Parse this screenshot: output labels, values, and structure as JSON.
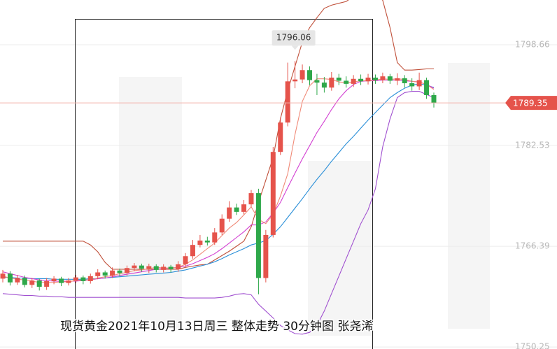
{
  "chart_data": {
    "type": "candlestick",
    "title": "现货黄金2021年10月13日周三 整体走势  30分钟图  张尧浠",
    "ylim": [
      1749.93,
      1805.83
    ],
    "yticks": [
      1750.25,
      1766.39,
      1782.53,
      1798.66
    ],
    "grid": true,
    "up_color": "#e5534b",
    "down_color": "#2ea84a",
    "open": [
      1761.2,
      1762.0,
      1760.6,
      1761.3,
      1760.2,
      1760.9,
      1759.9,
      1760.8,
      1761.2,
      1760.5,
      1760.9,
      1761.4,
      1760.8,
      1761.6,
      1762.2,
      1761.7,
      1762.5,
      1762.1,
      1762.9,
      1763.3,
      1762.8,
      1763.2,
      1762.6,
      1763.1,
      1762.7,
      1763.5,
      1764.8,
      1766.6,
      1767.3,
      1767.0,
      1768.6,
      1770.8,
      1772.6,
      1771.9,
      1773.1,
      1774.9,
      1761.3,
      1768.2,
      1781.5,
      1786.2,
      1792.8,
      1793.1,
      1794.6,
      1793.0,
      1792.6,
      1791.8,
      1793.4,
      1792.9,
      1792.4,
      1793.2,
      1792.8,
      1793.4,
      1793.0,
      1793.6,
      1792.9,
      1793.3,
      1792.5,
      1792.0,
      1793.0,
      1790.6
    ],
    "high": [
      1762.6,
      1762.4,
      1761.8,
      1761.7,
      1761.3,
      1761.2,
      1761.3,
      1761.6,
      1761.5,
      1761.3,
      1761.8,
      1761.7,
      1762.0,
      1762.7,
      1762.5,
      1763.0,
      1762.8,
      1763.3,
      1763.7,
      1763.6,
      1763.6,
      1763.5,
      1763.5,
      1763.4,
      1764.0,
      1765.3,
      1767.4,
      1768.2,
      1767.9,
      1769.3,
      1771.5,
      1773.6,
      1773.2,
      1773.8,
      1775.4,
      1775.6,
      1769.0,
      1782.3,
      1787.0,
      1795.8,
      1796.06,
      1795.5,
      1795.2,
      1794.0,
      1793.5,
      1794.3,
      1794.0,
      1793.6,
      1793.8,
      1793.9,
      1794.0,
      1793.9,
      1794.2,
      1794.0,
      1794.1,
      1793.8,
      1793.3,
      1794.2,
      1793.4,
      1791.0
    ],
    "low": [
      1760.6,
      1760.1,
      1760.2,
      1759.8,
      1759.7,
      1759.3,
      1759.4,
      1760.3,
      1760.0,
      1760.1,
      1760.5,
      1760.3,
      1760.4,
      1761.1,
      1761.2,
      1761.3,
      1761.6,
      1761.7,
      1762.4,
      1762.3,
      1762.1,
      1762.2,
      1762.2,
      1762.2,
      1762.3,
      1763.1,
      1764.4,
      1766.2,
      1766.5,
      1766.6,
      1768.2,
      1770.3,
      1771.4,
      1771.5,
      1772.7,
      1758.7,
      1760.6,
      1767.8,
      1781.0,
      1785.6,
      1791.7,
      1792.5,
      1792.2,
      1790.6,
      1791.0,
      1791.3,
      1792.2,
      1791.8,
      1791.9,
      1792.2,
      1792.3,
      1792.4,
      1792.5,
      1792.4,
      1792.2,
      1791.8,
      1791.3,
      1791.4,
      1790.0,
      1788.6
    ],
    "close": [
      1762.0,
      1760.6,
      1761.3,
      1760.2,
      1760.9,
      1759.9,
      1760.8,
      1761.2,
      1760.5,
      1760.9,
      1761.4,
      1760.8,
      1761.6,
      1762.2,
      1761.7,
      1762.5,
      1762.1,
      1762.9,
      1763.3,
      1762.8,
      1763.2,
      1762.6,
      1763.1,
      1762.7,
      1763.5,
      1764.8,
      1766.6,
      1767.3,
      1767.0,
      1768.6,
      1770.8,
      1772.6,
      1771.9,
      1773.1,
      1774.9,
      1761.3,
      1768.2,
      1781.5,
      1786.2,
      1792.8,
      1793.1,
      1794.6,
      1793.0,
      1792.6,
      1791.8,
      1793.4,
      1792.9,
      1792.4,
      1793.2,
      1792.8,
      1793.4,
      1793.0,
      1793.6,
      1792.9,
      1793.3,
      1792.5,
      1792.0,
      1793.0,
      1790.6,
      1789.35
    ],
    "lines": [
      {
        "color": "#c0503a",
        "values": [
          1767.2,
          1767.2,
          1767.2,
          1767.2,
          1767.2,
          1767.2,
          1767.2,
          1767.2,
          1767.2,
          1767.2,
          1767.2,
          1767.2,
          1766.6,
          1765.5,
          1763.8,
          1762.7,
          1762.7,
          1762.7,
          1762.7,
          1762.7,
          1762.7,
          1762.7,
          1762.7,
          1762.7,
          1762.7,
          1763.0,
          1763.2,
          1763.4,
          1763.5,
          1764.2,
          1764.9,
          1765.6,
          1766.4,
          1767.2,
          1769.5,
          1773.4,
          1777.0,
          1780.6,
          1786.8,
          1791.3,
          1795.2,
          1799.1,
          1801.4,
          1803.0,
          1804.5,
          1805.0,
          1805.3,
          1805.6,
          1806.4,
          1806.7,
          1807.0,
          1806.8,
          1805.8,
          1801.4,
          1795.8,
          1794.6,
          1794.6,
          1794.7,
          1794.8,
          1794.8
        ]
      },
      {
        "color": "#a050d0",
        "values": [
          1758.8,
          1758.7,
          1758.6,
          1758.5,
          1758.5,
          1758.4,
          1758.4,
          1758.3,
          1758.3,
          1758.2,
          1758.2,
          1758.2,
          1758.2,
          1758.2,
          1758.2,
          1758.2,
          1758.2,
          1758.2,
          1758.2,
          1758.2,
          1758.2,
          1758.2,
          1758.2,
          1758.2,
          1758.2,
          1758.1,
          1758.1,
          1758.1,
          1758.1,
          1758.1,
          1758.2,
          1758.4,
          1758.7,
          1758.8,
          1758.6,
          1757.1,
          1756.0,
          1754.9,
          1753.7,
          1753.0,
          1752.4,
          1752.3,
          1752.6,
          1753.7,
          1756.0,
          1758.8,
          1761.6,
          1764.4,
          1767.2,
          1770.0,
          1772.2,
          1775.6,
          1782.3,
          1786.8,
          1790.2,
          1791.0,
          1791.2,
          1791.2,
          1790.7,
          1790.2
        ]
      },
      {
        "color": "#2a8fd8",
        "values": [
          1761.4,
          1761.4,
          1761.3,
          1761.3,
          1761.2,
          1761.2,
          1761.2,
          1761.1,
          1761.1,
          1761.1,
          1761.1,
          1761.1,
          1761.2,
          1761.2,
          1761.3,
          1761.4,
          1761.5,
          1761.6,
          1761.7,
          1761.8,
          1761.9,
          1762.0,
          1762.1,
          1762.2,
          1762.4,
          1762.6,
          1762.9,
          1763.2,
          1763.5,
          1763.9,
          1764.4,
          1765.0,
          1765.5,
          1766.0,
          1766.6,
          1766.9,
          1767.3,
          1768.3,
          1769.5,
          1771.0,
          1772.5,
          1774.0,
          1775.6,
          1777.1,
          1778.5,
          1780.0,
          1781.4,
          1782.8,
          1784.0,
          1785.3,
          1786.6,
          1787.8,
          1789.0,
          1790.2,
          1791.0,
          1791.7,
          1792.2,
          1792.4,
          1792.2,
          1791.8
        ]
      },
      {
        "color": "#d23fd2",
        "values": [
          1762.3,
          1762.0,
          1761.7,
          1761.4,
          1761.2,
          1761.0,
          1760.9,
          1760.8,
          1760.8,
          1760.8,
          1760.8,
          1760.9,
          1761.0,
          1761.2,
          1761.3,
          1761.5,
          1761.7,
          1761.9,
          1762.1,
          1762.3,
          1762.5,
          1762.7,
          1762.8,
          1762.9,
          1763.0,
          1763.2,
          1763.6,
          1764.1,
          1764.6,
          1765.2,
          1766.0,
          1766.9,
          1767.8,
          1768.7,
          1769.8,
          1769.8,
          1770.3,
          1771.7,
          1773.4,
          1775.8,
          1778.1,
          1780.4,
          1782.5,
          1784.6,
          1786.4,
          1788.3,
          1790.0,
          1791.3,
          1792.3,
          1792.8,
          1792.9,
          1792.9,
          1793.0,
          1793.0,
          1793.0,
          1792.9,
          1792.8,
          1792.7,
          1792.3,
          1791.7
        ]
      },
      {
        "color": "#f08a78",
        "values": [
          1761.6,
          1761.3,
          1761.1,
          1761.0,
          1760.8,
          1760.6,
          1760.6,
          1760.6,
          1760.7,
          1760.7,
          1760.9,
          1761.0,
          1761.0,
          1761.3,
          1761.5,
          1761.7,
          1762.0,
          1762.2,
          1762.5,
          1762.6,
          1762.8,
          1763.0,
          1762.9,
          1762.9,
          1763.0,
          1763.5,
          1764.2,
          1765.1,
          1766.0,
          1766.9,
          1768.1,
          1769.3,
          1770.2,
          1771.4,
          1772.7,
          1770.7,
          1770.0,
          1771.5,
          1774.4,
          1778.0,
          1784.3,
          1789.6,
          1792.1,
          1793.2,
          1793.2,
          1793.1,
          1792.7,
          1792.6,
          1792.7,
          1792.9,
          1792.9,
          1793.0,
          1793.2,
          1793.1,
          1793.2,
          1793.1,
          1792.8,
          1792.7,
          1792.3,
          1791.5
        ]
      }
    ]
  }
}
